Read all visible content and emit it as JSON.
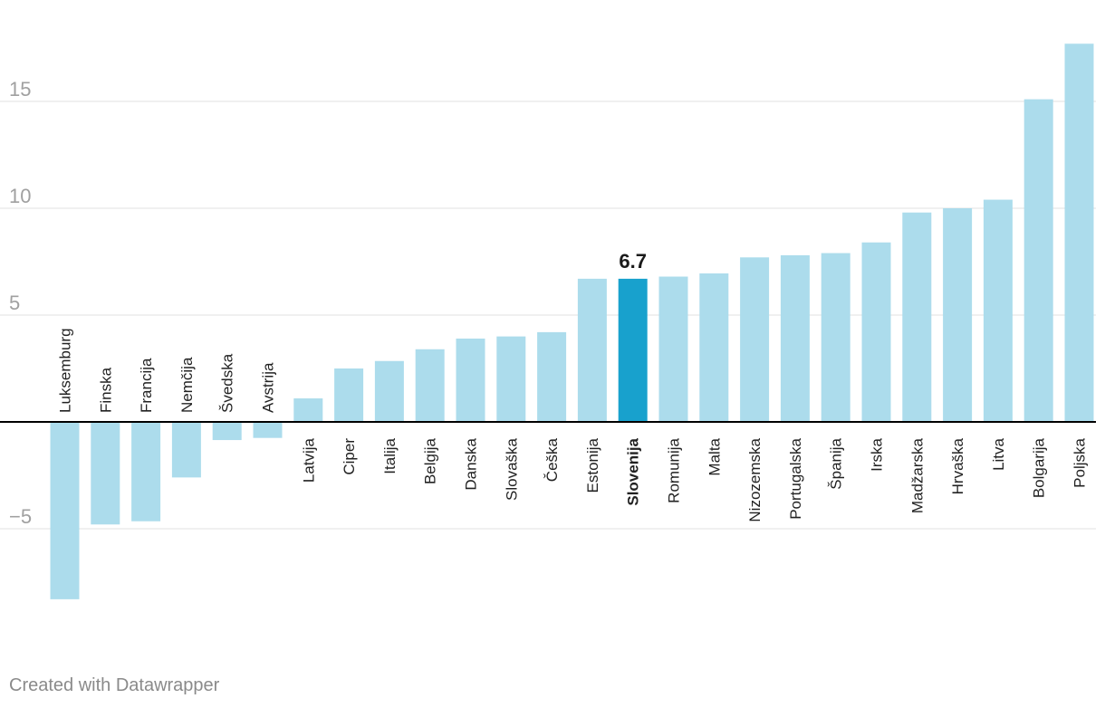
{
  "chart_data": {
    "type": "bar",
    "title": "",
    "xlabel": "",
    "ylabel": "",
    "ylim": [
      -8.3,
      17.7
    ],
    "yticks": [
      -5,
      5,
      10,
      15
    ],
    "highlight": "Slovenija",
    "highlight_label": "6.7",
    "colors": {
      "bar": "#acdcec",
      "highlight": "#18a1cd",
      "grid": "#e0e0e0",
      "axis": "#000000",
      "tick_text": "#a0a0a0",
      "label_text": "#222222"
    },
    "categories": [
      "Luksemburg",
      "Finska",
      "Francija",
      "Nemčija",
      "Švedska",
      "Avstrija",
      "Latvija",
      "Ciper",
      "Italija",
      "Belgija",
      "Danska",
      "Slovaška",
      "Češka",
      "Estonija",
      "Slovenija",
      "Romunija",
      "Malta",
      "Nizozemska",
      "Portugalska",
      "Španija",
      "Irska",
      "Madžarska",
      "Hrvaška",
      "Litva",
      "Bolgarija",
      "Poljska"
    ],
    "values": [
      -8.3,
      -4.8,
      -4.65,
      -2.6,
      -0.85,
      -0.75,
      1.1,
      2.5,
      2.85,
      3.4,
      3.9,
      4.0,
      4.2,
      6.7,
      6.7,
      6.8,
      6.95,
      7.7,
      7.8,
      7.9,
      8.4,
      9.8,
      10.0,
      10.4,
      15.1,
      17.7
    ]
  },
  "footer": {
    "credit": "Created with Datawrapper"
  }
}
